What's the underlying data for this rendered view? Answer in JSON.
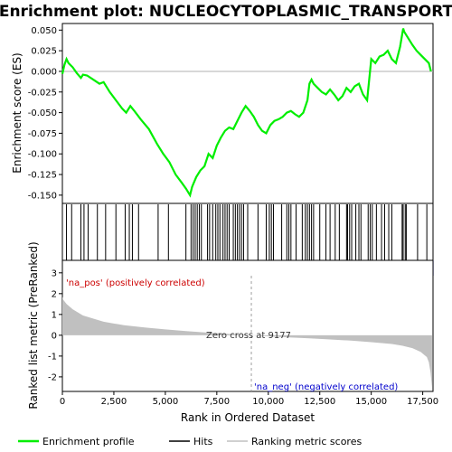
{
  "chart_data": {
    "type": "line",
    "title": "Enrichment plot: NUCLEOCYTOPLASMIC_TRANSPORT",
    "top_panel": {
      "ylabel": "Enrichment score (ES)",
      "ylim": [
        -0.16,
        0.058
      ],
      "yticks": [
        0.05,
        0.025,
        0.0,
        -0.025,
        -0.05,
        -0.075,
        -0.1,
        -0.125,
        -0.15
      ],
      "ytick_labels": [
        "0.050",
        "0.025",
        "0.000",
        "-0.025",
        "-0.050",
        "-0.075",
        "-0.100",
        "-0.125",
        "-0.150"
      ],
      "series": [
        {
          "name": "Enrichment profile",
          "color": "#00ee00",
          "x": [
            0,
            100,
            200,
            300,
            500,
            700,
            900,
            1000,
            1200,
            1500,
            1800,
            2000,
            2300,
            2600,
            2900,
            3100,
            3300,
            3500,
            3800,
            4200,
            4600,
            4900,
            5200,
            5500,
            5800,
            6000,
            6200,
            6300,
            6500,
            6700,
            6900,
            7100,
            7300,
            7500,
            7700,
            7900,
            8100,
            8300,
            8500,
            8700,
            8900,
            9100,
            9300,
            9500,
            9700,
            9900,
            10100,
            10300,
            10500,
            10700,
            10900,
            11100,
            11300,
            11500,
            11700,
            11900,
            12000,
            12100,
            12200,
            12400,
            12600,
            12800,
            13000,
            13200,
            13400,
            13600,
            13800,
            14000,
            14200,
            14400,
            14600,
            14800,
            15000,
            15200,
            15400,
            15600,
            15800,
            16000,
            16200,
            16400,
            16550,
            16600,
            16800,
            17000,
            17200,
            17400,
            17600,
            17800,
            17900
          ],
          "y": [
            -0.003,
            0.008,
            0.015,
            0.01,
            0.005,
            -0.002,
            -0.008,
            -0.004,
            -0.005,
            -0.01,
            -0.015,
            -0.013,
            -0.025,
            -0.035,
            -0.045,
            -0.05,
            -0.042,
            -0.048,
            -0.058,
            -0.07,
            -0.088,
            -0.1,
            -0.11,
            -0.125,
            -0.135,
            -0.142,
            -0.15,
            -0.14,
            -0.128,
            -0.12,
            -0.115,
            -0.1,
            -0.105,
            -0.09,
            -0.08,
            -0.072,
            -0.068,
            -0.07,
            -0.06,
            -0.05,
            -0.042,
            -0.048,
            -0.055,
            -0.065,
            -0.072,
            -0.075,
            -0.065,
            -0.06,
            -0.058,
            -0.055,
            -0.05,
            -0.048,
            -0.052,
            -0.055,
            -0.05,
            -0.035,
            -0.015,
            -0.01,
            -0.015,
            -0.02,
            -0.025,
            -0.028,
            -0.022,
            -0.028,
            -0.035,
            -0.03,
            -0.02,
            -0.025,
            -0.018,
            -0.015,
            -0.028,
            -0.035,
            0.015,
            0.01,
            0.018,
            0.02,
            0.025,
            0.015,
            0.01,
            0.03,
            0.052,
            0.048,
            0.04,
            0.032,
            0.025,
            0.02,
            0.015,
            0.01,
            0.0
          ]
        }
      ]
    },
    "hits_panel": {
      "hit_positions": [
        200,
        450,
        900,
        1050,
        1250,
        1700,
        2100,
        2600,
        3050,
        3250,
        3400,
        3700,
        4650,
        5150,
        6000,
        6250,
        6350,
        6450,
        6550,
        6650,
        6750,
        7050,
        7150,
        7300,
        7450,
        7550,
        7650,
        7800,
        7900,
        8000,
        8100,
        8300,
        8400,
        8500,
        8600,
        8700,
        8800,
        9000,
        9500,
        9900,
        10050,
        10150,
        10250,
        10650,
        10900,
        11000,
        11100,
        11350,
        11650,
        11800,
        11900,
        12000,
        12100,
        12200,
        12500,
        12800,
        13000,
        13250,
        13450,
        13800,
        13850,
        13950,
        14050,
        14250,
        14400,
        14500,
        14850,
        14950,
        15050,
        15250,
        15500,
        15650,
        15850,
        16000,
        16500,
        16550,
        16650,
        16700,
        17250,
        17700
      ]
    },
    "rank_panel": {
      "ylabel": "Ranked list metric (PreRanked)",
      "xlabel": "Rank in Ordered Dataset",
      "ylim": [
        -2.7,
        3.6
      ],
      "yticks": [
        3,
        2,
        1,
        0,
        -1,
        -2
      ],
      "ytick_labels": [
        "3",
        "2",
        "1",
        "0",
        "-1",
        "-2"
      ],
      "xlim": [
        0,
        18000
      ],
      "xticks": [
        0,
        2500,
        5000,
        7500,
        10000,
        12500,
        15000,
        17500
      ],
      "xtick_labels": [
        "0",
        "2,500",
        "5,000",
        "7,500",
        "10,000",
        "12,500",
        "15,000",
        "17,500"
      ],
      "metric_x": [
        0,
        50,
        200,
        500,
        1000,
        2000,
        3000,
        4000,
        5000,
        6000,
        7000,
        8000,
        9177,
        10000,
        11000,
        12000,
        13000,
        14000,
        15000,
        16000,
        16500,
        17000,
        17400,
        17700,
        17800,
        17880,
        17950
      ],
      "metric_y": [
        1.85,
        1.7,
        1.5,
        1.25,
        0.95,
        0.65,
        0.48,
        0.37,
        0.28,
        0.2,
        0.13,
        0.07,
        0.0,
        -0.05,
        -0.1,
        -0.15,
        -0.2,
        -0.26,
        -0.33,
        -0.42,
        -0.5,
        -0.62,
        -0.8,
        -1.05,
        -1.3,
        -1.8,
        -2.55
      ],
      "zero_cross": 9177,
      "zero_cross_label": "Zero cross at 9177",
      "pos_label": "'na_pos' (positively correlated)",
      "neg_label": "'na_neg' (negatively correlated)"
    },
    "legend": [
      {
        "label": "Enrichment profile",
        "color": "#00ee00"
      },
      {
        "label": "Hits",
        "color": "#000000"
      },
      {
        "label": "Ranking metric scores",
        "color": "#c0c0c0"
      }
    ]
  }
}
